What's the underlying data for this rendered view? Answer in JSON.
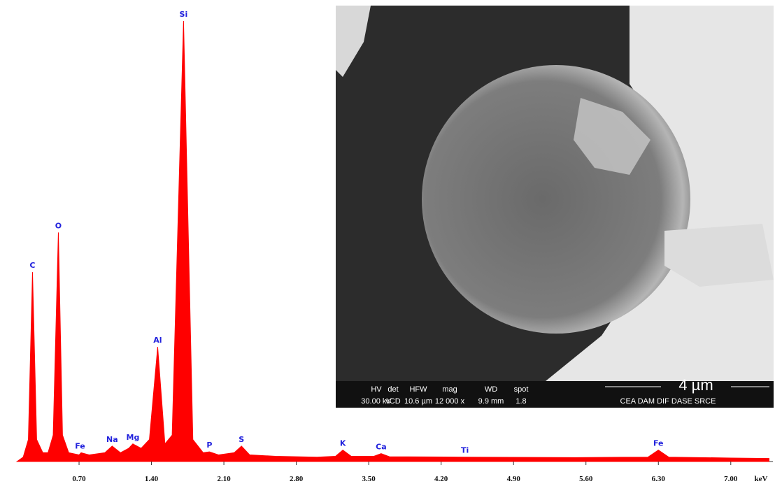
{
  "chart_data": {
    "type": "area",
    "color": "#ff0000",
    "axis_label": "keV",
    "x": [
      0.1,
      0.16,
      0.21,
      0.25,
      0.29,
      0.35,
      0.4,
      0.45,
      0.5,
      0.54,
      0.6,
      0.7,
      0.72,
      0.8,
      0.95,
      1.02,
      1.1,
      1.18,
      1.22,
      1.3,
      1.38,
      1.46,
      1.53,
      1.6,
      1.71,
      1.8,
      1.9,
      1.96,
      2.05,
      2.2,
      2.27,
      2.35,
      2.6,
      3.0,
      3.18,
      3.25,
      3.33,
      3.55,
      3.62,
      3.7,
      4.43,
      5.5,
      6.2,
      6.3,
      6.4,
      7.0,
      7.37
    ],
    "values": [
      0,
      1,
      5,
      43,
      5,
      2,
      2,
      6,
      52,
      6,
      2,
      1.5,
      2,
      1.5,
      2,
      3.5,
      2,
      3,
      4,
      3,
      5,
      26,
      4,
      6,
      100,
      5,
      2,
      2.2,
      1.5,
      2,
      3.5,
      1.5,
      1.2,
      1,
      1.2,
      2.6,
      1.2,
      1.2,
      1.8,
      1.1,
      1,
      0.9,
      1,
      2.6,
      1,
      0.8,
      0.7
    ],
    "xlim": [
      0,
      7.37
    ],
    "ylim": [
      0,
      100
    ],
    "xticks": [
      {
        "value": 0.7,
        "label": "0.70"
      },
      {
        "value": 1.4,
        "label": "1.40"
      },
      {
        "value": 2.1,
        "label": "2.10"
      },
      {
        "value": 2.8,
        "label": "2.80"
      },
      {
        "value": 3.5,
        "label": "3.50"
      },
      {
        "value": 4.2,
        "label": "4.20"
      },
      {
        "value": 4.9,
        "label": "4.90"
      },
      {
        "value": 5.6,
        "label": "5.60"
      },
      {
        "value": 6.3,
        "label": "6.30"
      },
      {
        "value": 7.0,
        "label": "7.00"
      }
    ],
    "annotations": [
      {
        "text": "C",
        "x": 0.25,
        "y": 43
      },
      {
        "text": "O",
        "x": 0.5,
        "y": 52
      },
      {
        "text": "Fe",
        "x": 0.71,
        "y": 2
      },
      {
        "text": "Na",
        "x": 1.02,
        "y": 3.5
      },
      {
        "text": "Mg",
        "x": 1.22,
        "y": 4
      },
      {
        "text": "Al",
        "x": 1.46,
        "y": 26
      },
      {
        "text": "Si",
        "x": 1.71,
        "y": 100
      },
      {
        "text": "P",
        "x": 1.96,
        "y": 2.2
      },
      {
        "text": "S",
        "x": 2.27,
        "y": 3.5
      },
      {
        "text": "K",
        "x": 3.25,
        "y": 2.6
      },
      {
        "text": "Ca",
        "x": 3.62,
        "y": 1.8
      },
      {
        "text": "Ti",
        "x": 4.43,
        "y": 1
      },
      {
        "text": "Fe",
        "x": 6.3,
        "y": 2.6
      }
    ],
    "inset": {
      "scale_label": "4 µm",
      "fields": [
        {
          "head": "HV",
          "value": "30.00 kV"
        },
        {
          "head": "det",
          "value": "vCD"
        },
        {
          "head": "HFW",
          "value": "10.6 µm"
        },
        {
          "head": "mag",
          "value": "12 000 x"
        },
        {
          "head": "WD",
          "value": "9.9 mm"
        },
        {
          "head": "spot",
          "value": "1.8"
        }
      ],
      "credit": "CEA DAM DIF DASE SRCE"
    }
  }
}
